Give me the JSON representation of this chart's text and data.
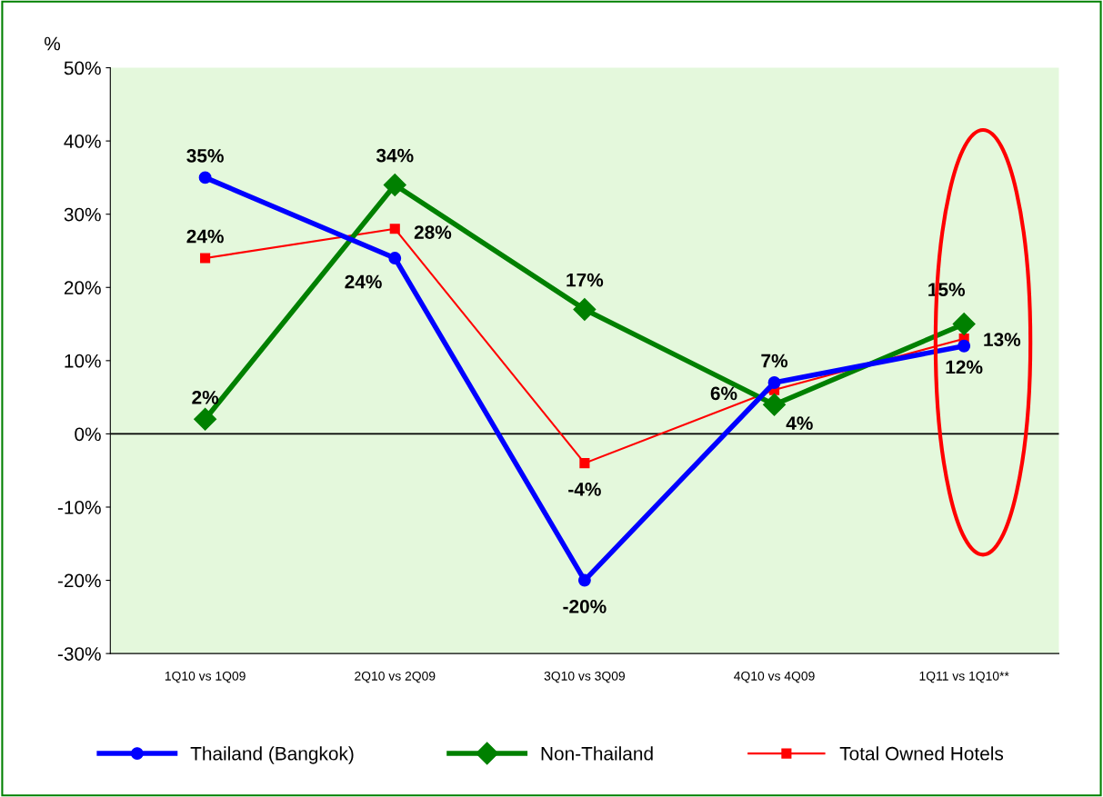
{
  "chart_data": {
    "type": "line",
    "ylabel": "%",
    "categories": [
      "1Q10 vs 1Q09",
      "2Q10 vs 2Q09",
      "3Q10 vs 3Q09",
      "4Q10 vs 4Q09",
      "1Q11 vs 1Q10**"
    ],
    "series": [
      {
        "name": "Thailand (Bangkok)",
        "color": "#0000ff",
        "values": [
          35,
          24,
          -20,
          7,
          12
        ],
        "value_labels": [
          "35%",
          "24%",
          "-20%",
          "7%",
          "12%"
        ],
        "marker": "circle"
      },
      {
        "name": "Non-Thailand",
        "color": "#008000",
        "values": [
          2,
          34,
          17,
          4,
          15
        ],
        "value_labels": [
          "2%",
          "34%",
          "17%",
          "4%",
          "15%"
        ],
        "marker": "diamond"
      },
      {
        "name": "Total Owned Hotels",
        "color": "#ff0000",
        "values": [
          24,
          28,
          -4,
          6,
          13
        ],
        "value_labels": [
          "24%",
          "28%",
          "-4%",
          "6%",
          "13%"
        ],
        "marker": "square"
      }
    ],
    "ylim": [
      -30,
      50
    ],
    "yticks": [
      {
        "value": -30,
        "label": "-30%"
      },
      {
        "value": -20,
        "label": "-20%"
      },
      {
        "value": -10,
        "label": "-10%"
      },
      {
        "value": 0,
        "label": "0%"
      },
      {
        "value": 10,
        "label": "10%"
      },
      {
        "value": 20,
        "label": "20%"
      },
      {
        "value": 30,
        "label": "30%"
      },
      {
        "value": 40,
        "label": "40%"
      },
      {
        "value": 50,
        "label": "50%"
      }
    ],
    "ref_lines": [
      {
        "axis": "y",
        "value": 0,
        "color": "#000000"
      }
    ],
    "legend": "bottom",
    "grid": false
  }
}
